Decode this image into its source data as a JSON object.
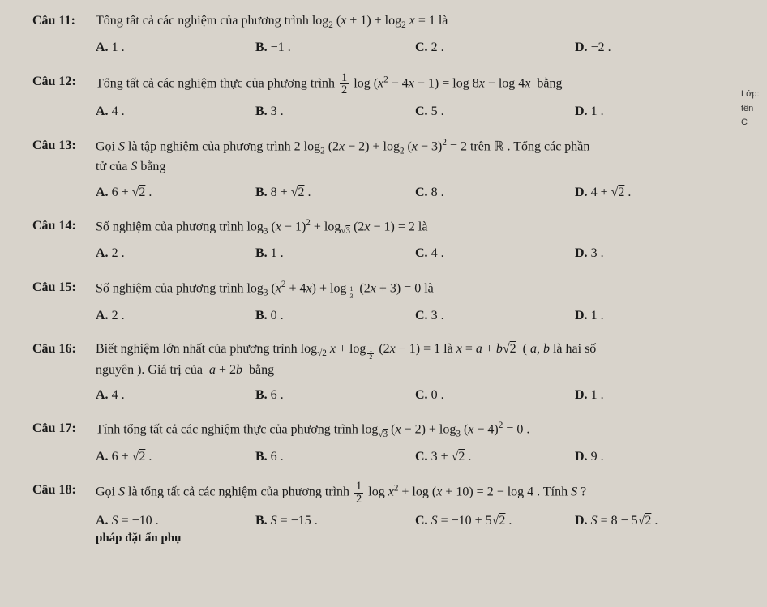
{
  "colors": {
    "background": "#d8d3cb",
    "text": "#1a1a1a"
  },
  "typography": {
    "base_font": "Times New Roman",
    "base_size_pt": 12,
    "label_bold": true
  },
  "margin_notes": [
    "Lớp:",
    "tên",
    "C"
  ],
  "footer_text": "pháp đặt ẩn phụ",
  "questions": [
    {
      "label": "Câu 11:",
      "stem_html": "Tổng tất cả các nghiệm của phương trình log<sub>2</sub> (<i>x</i> + 1) + log<sub>2</sub> <i>x</i> = 1 là",
      "options": [
        {
          "key": "A.",
          "val_html": "1 ."
        },
        {
          "key": "B.",
          "val_html": "−1 ."
        },
        {
          "key": "C.",
          "val_html": "2 ."
        },
        {
          "key": "D.",
          "val_html": "−2 ."
        }
      ]
    },
    {
      "label": "Câu 12:",
      "stem_html": "Tổng tất cả các nghiệm thực của phương trình <span class='frac'><span class='num'>1</span><span class='den'>2</span></span> log (<i>x</i><sup>2</sup> − 4<i>x</i> − 1) = log 8<i>x</i> − log 4<i>x</i>&nbsp; bằng",
      "options": [
        {
          "key": "A.",
          "val_html": "4 ."
        },
        {
          "key": "B.",
          "val_html": "3 ."
        },
        {
          "key": "C.",
          "val_html": "5 ."
        },
        {
          "key": "D.",
          "val_html": "1 ."
        }
      ]
    },
    {
      "label": "Câu 13:",
      "stem_html": "Gọi <i>S</i> là tập nghiệm của phương trình 2 log<sub>2</sub> (2<i>x</i> − 2) + log<sub>2</sub> (<i>x</i> − 3)<sup>2</sup> = 2 trên <span class='dbl'>ℝ</span> . Tổng các phần",
      "stem_cont_html": "tử của <i>S</i> bằng",
      "options": [
        {
          "key": "A.",
          "val_html": "6 + <span class='root'></span><span class='sqrt'>2</span> ."
        },
        {
          "key": "B.",
          "val_html": "8 + <span class='root'></span><span class='sqrt'>2</span> ."
        },
        {
          "key": "C.",
          "val_html": "8 ."
        },
        {
          "key": "D.",
          "val_html": "4 + <span class='root'></span><span class='sqrt'>2</span> ."
        }
      ]
    },
    {
      "label": "Câu 14:",
      "stem_html": "Số nghiệm của phương trình log<sub>3</sub> (<i>x</i> − 1)<sup>2</sup> + log<sub><span class='root'></span><span class='sqrt'>3</span></sub> (2<i>x</i> − 1) = 2 là",
      "options": [
        {
          "key": "A.",
          "val_html": "2 ."
        },
        {
          "key": "B.",
          "val_html": "1 ."
        },
        {
          "key": "C.",
          "val_html": "4 ."
        },
        {
          "key": "D.",
          "val_html": "3 ."
        }
      ]
    },
    {
      "label": "Câu 15:",
      "stem_html": "Số nghiệm của phương trình log<sub>3</sub> (<i>x</i><sup>2</sup> + 4<i>x</i>) + log<sub><span class='frac' style='font-size:0.7em;'><span class='num'>1</span><span class='den'>3</span></span></sub> (2<i>x</i> + 3) = 0 là",
      "options": [
        {
          "key": "A.",
          "val_html": "2 ."
        },
        {
          "key": "B.",
          "val_html": "0 ."
        },
        {
          "key": "C.",
          "val_html": "3 ."
        },
        {
          "key": "D.",
          "val_html": "1 ."
        }
      ]
    },
    {
      "label": "Câu 16:",
      "stem_html": "Biết nghiệm lớn nhất của phương trình log<sub><span class='root'></span><span class='sqrt'>2</span></sub> <i>x</i> + log<sub><span class='frac' style='font-size:0.7em;'><span class='num'>1</span><span class='den'>2</span></span></sub> (2<i>x</i> − 1) = 1 là <i>x</i> = <i>a</i> + <i>b</i><span class='root'></span><span class='sqrt'>2</span> &nbsp;( <i>a</i>, <i>b</i> là hai số",
      "stem_cont_html": "nguyên ). Giá trị của &nbsp;<i>a</i> + 2<i>b</i>&nbsp; bằng",
      "options": [
        {
          "key": "A.",
          "val_html": "4 ."
        },
        {
          "key": "B.",
          "val_html": "6 ."
        },
        {
          "key": "C.",
          "val_html": "0 ."
        },
        {
          "key": "D.",
          "val_html": "1 ."
        }
      ]
    },
    {
      "label": "Câu 17:",
      "stem_html": "Tính tổng tất cả các nghiệm thực của phương trình log<sub><span class='root'></span><span class='sqrt'>3</span></sub> (<i>x</i> − 2) + log<sub>3</sub> (<i>x</i> − 4)<sup>2</sup> = 0 .",
      "options": [
        {
          "key": "A.",
          "val_html": "6 + <span class='root'></span><span class='sqrt'>2</span> ."
        },
        {
          "key": "B.",
          "val_html": "6 ."
        },
        {
          "key": "C.",
          "val_html": "3 + <span class='root'></span><span class='sqrt'>2</span> ."
        },
        {
          "key": "D.",
          "val_html": "9 ."
        }
      ]
    },
    {
      "label": "Câu 18:",
      "stem_html": "Gọi <i>S</i> là tổng tất cả các nghiệm của phương trình <span class='frac'><span class='num'>1</span><span class='den'>2</span></span> log <i>x</i><sup>2</sup> + log (<i>x</i> + 10) = 2 − log 4 . Tính <i>S</i> ?",
      "options": [
        {
          "key": "A.",
          "val_html": "<i>S</i> = −10 ."
        },
        {
          "key": "B.",
          "val_html": "<i>S</i> = −15 ."
        },
        {
          "key": "C.",
          "val_html": "<i>S</i> = −10 + 5<span class='root'></span><span class='sqrt'>2</span> ."
        },
        {
          "key": "D.",
          "val_html": "<i>S</i> = 8 − 5<span class='root'></span><span class='sqrt'>2</span> ."
        }
      ]
    }
  ]
}
